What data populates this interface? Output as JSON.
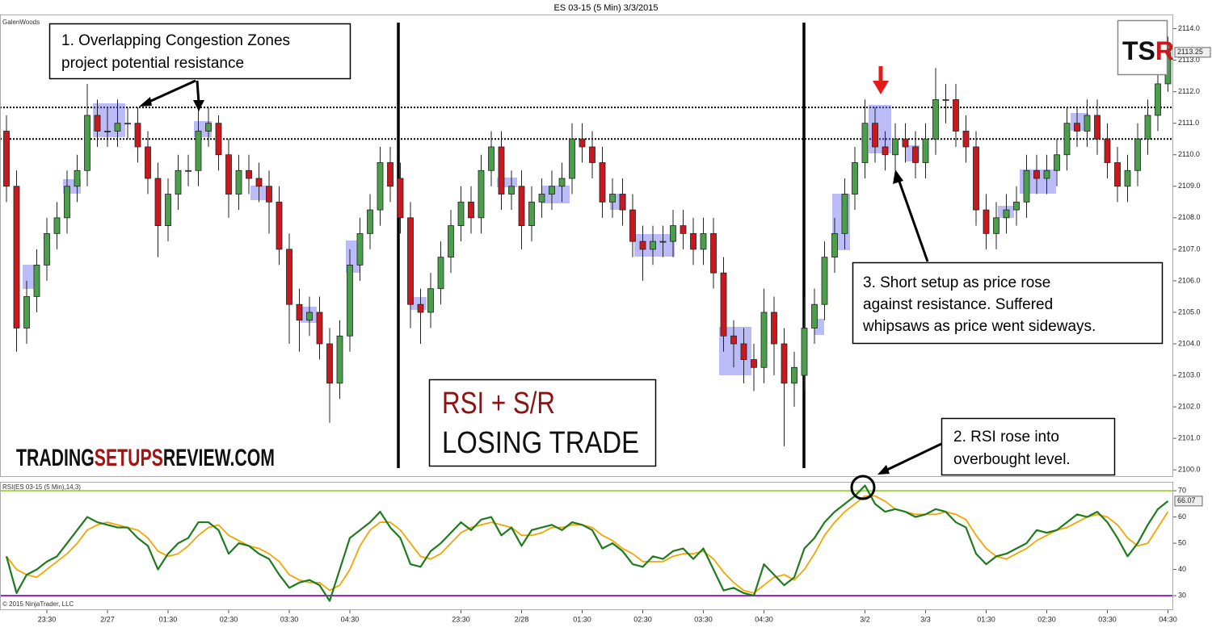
{
  "chart_data": [
    {
      "type": "candlestick",
      "title": "ES 03-15 (5 Min)  3/3/2015",
      "account": "GalenWoods",
      "up_color": "#4aa04a",
      "down_color": "#c8191e",
      "ylim": [
        2099.8,
        2114.45
      ],
      "yticks": [
        {
          "value": 2100,
          "label": "2100.0"
        },
        {
          "value": 2101,
          "label": "2101.0"
        },
        {
          "value": 2102,
          "label": "2102.0"
        },
        {
          "value": 2103,
          "label": "2103.0"
        },
        {
          "value": 2104,
          "label": "2104.0"
        },
        {
          "value": 2105,
          "label": "2105.0"
        },
        {
          "value": 2106,
          "label": "2106.0"
        },
        {
          "value": 2107,
          "label": "2107.0"
        },
        {
          "value": 2108,
          "label": "2108.0"
        },
        {
          "value": 2109,
          "label": "2109.0"
        },
        {
          "value": 2110,
          "label": "2110.0"
        },
        {
          "value": 2111,
          "label": "2111.0"
        },
        {
          "value": 2112,
          "label": "2112.0"
        },
        {
          "value": 2113,
          "label": "2113.0"
        },
        {
          "value": 2114,
          "label": "2114.0"
        }
      ],
      "resistance_levels": [
        2111.5,
        2110.5
      ],
      "open": [
        2110.75,
        2109.0,
        2104.5,
        2105.5,
        2106.5,
        2107.5,
        2108.0,
        2109.0,
        2109.5,
        2111.25,
        2110.75,
        2110.75,
        2111.0,
        2111.0,
        2110.25,
        2109.25,
        2107.75,
        2108.75,
        2109.5,
        2109.5,
        2110.75,
        2111.0,
        2110.0,
        2108.75,
        2109.5,
        2109.25,
        2109.0,
        2108.5,
        2107.0,
        2105.25,
        2104.75,
        2105.0,
        2104.0,
        2102.75,
        2104.25,
        2106.5,
        2107.5,
        2108.25,
        2109.75,
        2109.25,
        2108.0,
        2105.25,
        2105.0,
        2105.75,
        2106.75,
        2107.75,
        2108.5,
        2108.0,
        2109.5,
        2110.25,
        2108.75,
        2109.0,
        2107.75,
        2108.5,
        2108.75,
        2109.0,
        2109.25,
        2110.5,
        2110.25,
        2109.75,
        2108.5,
        2108.75,
        2108.25,
        2107.25,
        2107.0,
        2107.25,
        2107.25,
        2107.75,
        2107.5,
        2107.0,
        2107.5,
        2106.25,
        2104.25,
        2104.0,
        2103.5,
        2103.25,
        2105.0,
        2104.0,
        2102.75,
        2103.0,
        2104.5,
        2105.25,
        2106.75,
        2107.5,
        2108.75,
        2109.75,
        2111.0,
        2110.25,
        2110.0,
        2110.5,
        2110.25,
        2109.75,
        2110.5,
        2111.75,
        2111.75,
        2110.75,
        2110.25,
        2108.25,
        2107.5,
        2108.0,
        2108.25,
        2108.5,
        2109.5,
        2109.25,
        2109.5,
        2110.0,
        2111.0,
        2110.75,
        2111.25,
        2110.5,
        2109.75,
        2109.0,
        2109.5,
        2110.5,
        2111.25,
        2112.25
      ],
      "high": [
        2111.25,
        2109.5,
        2106.0,
        2107.0,
        2108.0,
        2108.5,
        2109.5,
        2110.0,
        2112.25,
        2111.75,
        2111.5,
        2111.75,
        2111.5,
        2111.5,
        2110.75,
        2109.75,
        2109.25,
        2110.0,
        2110.0,
        2111.5,
        2111.5,
        2111.25,
        2110.5,
        2110.0,
        2110.0,
        2109.75,
        2109.5,
        2109.0,
        2107.5,
        2105.75,
        2105.5,
        2105.5,
        2104.5,
        2104.75,
        2107.0,
        2108.0,
        2108.75,
        2110.25,
        2110.25,
        2109.75,
        2108.5,
        2105.75,
        2106.25,
        2107.25,
        2108.25,
        2109.0,
        2109.0,
        2110.0,
        2110.75,
        2110.75,
        2109.5,
        2109.5,
        2109.0,
        2109.25,
        2109.5,
        2109.75,
        2111.0,
        2111.0,
        2110.75,
        2110.25,
        2109.25,
        2109.25,
        2108.75,
        2107.75,
        2107.75,
        2107.75,
        2108.25,
        2108.25,
        2108.0,
        2108.0,
        2108.0,
        2106.75,
        2104.75,
        2104.5,
        2104.0,
        2105.75,
        2105.5,
        2104.5,
        2103.75,
        2105.5,
        2105.75,
        2107.25,
        2108.0,
        2109.25,
        2110.25,
        2111.75,
        2111.5,
        2110.75,
        2111.0,
        2111.0,
        2110.75,
        2111.0,
        2112.75,
        2112.25,
        2112.25,
        2111.25,
        2110.75,
        2108.75,
        2108.5,
        2108.75,
        2109.0,
        2110.0,
        2110.0,
        2110.0,
        2110.5,
        2111.5,
        2111.5,
        2111.75,
        2111.75,
        2111.0,
        2110.25,
        2110.0,
        2111.0,
        2111.75,
        2112.75,
        2113.75
      ],
      "low": [
        2108.5,
        2103.75,
        2104.0,
        2105.0,
        2106.0,
        2107.0,
        2107.5,
        2108.5,
        2109.0,
        2110.25,
        2110.25,
        2110.25,
        2110.5,
        2109.75,
        2108.75,
        2106.75,
        2107.25,
        2108.25,
        2109.0,
        2109.0,
        2110.25,
        2109.5,
        2108.0,
        2108.25,
        2108.75,
        2108.5,
        2107.5,
        2106.5,
        2104.0,
        2103.75,
        2104.25,
        2103.5,
        2101.5,
        2102.25,
        2103.75,
        2106.0,
        2107.0,
        2107.75,
        2108.5,
        2107.5,
        2104.5,
        2104.0,
        2104.5,
        2105.25,
        2106.25,
        2107.25,
        2107.5,
        2107.5,
        2109.0,
        2108.25,
        2108.25,
        2107.0,
        2107.25,
        2108.0,
        2108.25,
        2108.5,
        2108.75,
        2109.75,
        2109.25,
        2108.0,
        2108.0,
        2107.75,
        2106.75,
        2106.0,
        2106.5,
        2106.75,
        2106.75,
        2107.0,
        2106.5,
        2106.5,
        2105.75,
        2103.75,
        2103.25,
        2102.75,
        2102.5,
        2102.75,
        2103.0,
        2100.75,
        2102.0,
        2102.5,
        2104.0,
        2104.75,
        2106.25,
        2107.0,
        2108.25,
        2109.25,
        2109.75,
        2109.5,
        2109.5,
        2109.75,
        2109.25,
        2109.25,
        2110.0,
        2111.0,
        2110.25,
        2109.75,
        2107.75,
        2107.0,
        2107.0,
        2107.5,
        2107.75,
        2108.0,
        2108.75,
        2108.75,
        2109.0,
        2109.5,
        2110.25,
        2110.25,
        2110.0,
        2109.25,
        2108.5,
        2108.5,
        2109.0,
        2110.0,
        2110.75,
        2112.0
      ],
      "close": [
        2109.0,
        2104.5,
        2105.5,
        2106.5,
        2107.5,
        2108.0,
        2109.0,
        2109.5,
        2111.25,
        2110.75,
        2110.75,
        2111.0,
        2111.0,
        2110.25,
        2109.25,
        2107.75,
        2108.75,
        2109.5,
        2109.5,
        2110.75,
        2111.0,
        2110.0,
        2108.75,
        2109.5,
        2109.25,
        2109.0,
        2108.5,
        2107.0,
        2105.25,
        2104.75,
        2105.0,
        2104.0,
        2102.75,
        2104.25,
        2106.5,
        2107.5,
        2108.25,
        2109.75,
        2109.0,
        2108.0,
        2105.25,
        2105.0,
        2105.75,
        2106.75,
        2107.75,
        2108.5,
        2108.0,
        2109.5,
        2110.25,
        2108.75,
        2109.0,
        2107.75,
        2108.5,
        2108.75,
        2109.0,
        2109.25,
        2110.5,
        2110.25,
        2109.75,
        2108.5,
        2108.75,
        2108.25,
        2107.25,
        2107.0,
        2107.25,
        2107.25,
        2107.75,
        2107.5,
        2107.0,
        2107.5,
        2106.25,
        2104.25,
        2104.0,
        2103.5,
        2103.25,
        2105.0,
        2104.0,
        2102.75,
        2103.25,
        2104.5,
        2105.25,
        2106.75,
        2107.5,
        2108.75,
        2109.75,
        2111.0,
        2110.25,
        2110.0,
        2110.5,
        2110.25,
        2109.75,
        2110.5,
        2111.75,
        2111.75,
        2110.75,
        2110.25,
        2108.25,
        2107.5,
        2108.0,
        2108.25,
        2108.5,
        2109.5,
        2109.25,
        2109.5,
        2110.0,
        2111.0,
        2110.75,
        2111.25,
        2110.5,
        2109.75,
        2109.0,
        2109.5,
        2110.5,
        2111.25,
        2112.25,
        2113.25
      ],
      "annotations": [
        {
          "lines": [
            "1. Overlapping  Congestion Zones",
            "project potential  resistance"
          ]
        },
        {
          "lines": [
            "2. RSI rose into",
            "overbought level."
          ]
        },
        {
          "lines": [
            "3. Short setup as price rose",
            "against resistance. Suffered",
            "whipsaws  as price went sideways."
          ]
        }
      ],
      "headline": [
        "RSI + S/R",
        "LOSING TRADE"
      ],
      "watermark": [
        "TRADING",
        "SETUPS",
        "REVIEW.COM"
      ],
      "logo": [
        "TS",
        "R"
      ]
    },
    {
      "type": "line",
      "title": "RSI(ES 03-15 (5 Min),14,3)",
      "copyright": "© 2015 NinjaTrader, LLC",
      "categories": [
        null,
        null,
        null,
        null,
        "23:30",
        null,
        null,
        null,
        null,
        null,
        "2/27",
        null,
        null,
        null,
        null,
        null,
        "01:30",
        null,
        null,
        null,
        null,
        null,
        "02:30",
        null,
        null,
        null,
        null,
        null,
        "03:30",
        null,
        null,
        null,
        null,
        null,
        "04:30",
        null,
        null,
        null,
        null,
        null,
        null,
        null,
        null,
        null,
        null,
        "23:30",
        null,
        null,
        null,
        null,
        null,
        "2/28",
        null,
        null,
        null,
        null,
        null,
        "01:30",
        null,
        null,
        null,
        null,
        null,
        "02:30",
        null,
        null,
        null,
        null,
        null,
        "03:30",
        null,
        null,
        null,
        null,
        null,
        "04:30",
        null,
        null,
        null,
        null,
        null,
        null,
        null,
        null,
        null,
        "3/2",
        null,
        null,
        null,
        null,
        null,
        "3/3",
        null,
        null,
        null,
        null,
        null,
        "01:30",
        null,
        null,
        null,
        null,
        null,
        "02:30",
        null,
        null,
        null,
        null,
        null,
        "03:30",
        null,
        null,
        null,
        null,
        null,
        "04:30"
      ],
      "ylim": [
        24.8,
        73.1
      ],
      "yticks": [
        30,
        40,
        50,
        60,
        70
      ],
      "levels": [
        {
          "value": 70,
          "color": "#a6d24b"
        },
        {
          "value": 30,
          "color": "#8b1fbf"
        }
      ],
      "series": [
        {
          "color": "#1e7b1e",
          "values": [
            45,
            31,
            38,
            40,
            43,
            45,
            50,
            55,
            60,
            58,
            57,
            56,
            56,
            52,
            49,
            40,
            46,
            50,
            52,
            58,
            58,
            55,
            46,
            50,
            49,
            46,
            44,
            38,
            33,
            35,
            36,
            34,
            28,
            40,
            52,
            55,
            58,
            62,
            56,
            52,
            42,
            41,
            47,
            50,
            54,
            58,
            55,
            59,
            60,
            53,
            56,
            49,
            55,
            56,
            57,
            55,
            58,
            57,
            55,
            48,
            50,
            47,
            42,
            41,
            45,
            44,
            47,
            48,
            44,
            48,
            40,
            32,
            33,
            31,
            30,
            42,
            38,
            34,
            37,
            48,
            52,
            58,
            62,
            65,
            68,
            72,
            65,
            62,
            63,
            62,
            60,
            61,
            63,
            62,
            58,
            56,
            46,
            42,
            45,
            46,
            48,
            50,
            55,
            54,
            55,
            58,
            61,
            60,
            62,
            58,
            52,
            45,
            50,
            57,
            63,
            66.07
          ]
        },
        {
          "color": "#f5a500",
          "values": [
            45,
            40,
            38,
            37,
            40,
            43,
            46,
            50,
            55,
            57,
            58,
            57,
            56,
            55,
            52,
            47,
            45,
            46,
            49,
            53,
            56,
            57,
            53,
            51,
            49,
            48,
            46,
            43,
            38,
            36,
            35,
            35,
            32,
            34,
            40,
            49,
            55,
            58,
            58,
            55,
            50,
            45,
            44,
            46,
            50,
            54,
            56,
            57,
            58,
            57,
            56,
            53,
            53,
            54,
            56,
            56,
            57,
            57,
            56,
            53,
            51,
            48,
            46,
            43,
            43,
            43,
            45,
            46,
            46,
            47,
            44,
            39,
            35,
            32,
            31,
            34,
            37,
            38,
            36,
            40,
            46,
            53,
            58,
            62,
            65,
            68,
            68,
            66,
            63,
            62,
            61,
            61,
            61,
            62,
            61,
            59,
            53,
            48,
            45,
            44,
            46,
            48,
            51,
            53,
            55,
            56,
            58,
            60,
            61,
            60,
            57,
            52,
            49,
            50,
            56,
            62
          ]
        }
      ]
    }
  ]
}
